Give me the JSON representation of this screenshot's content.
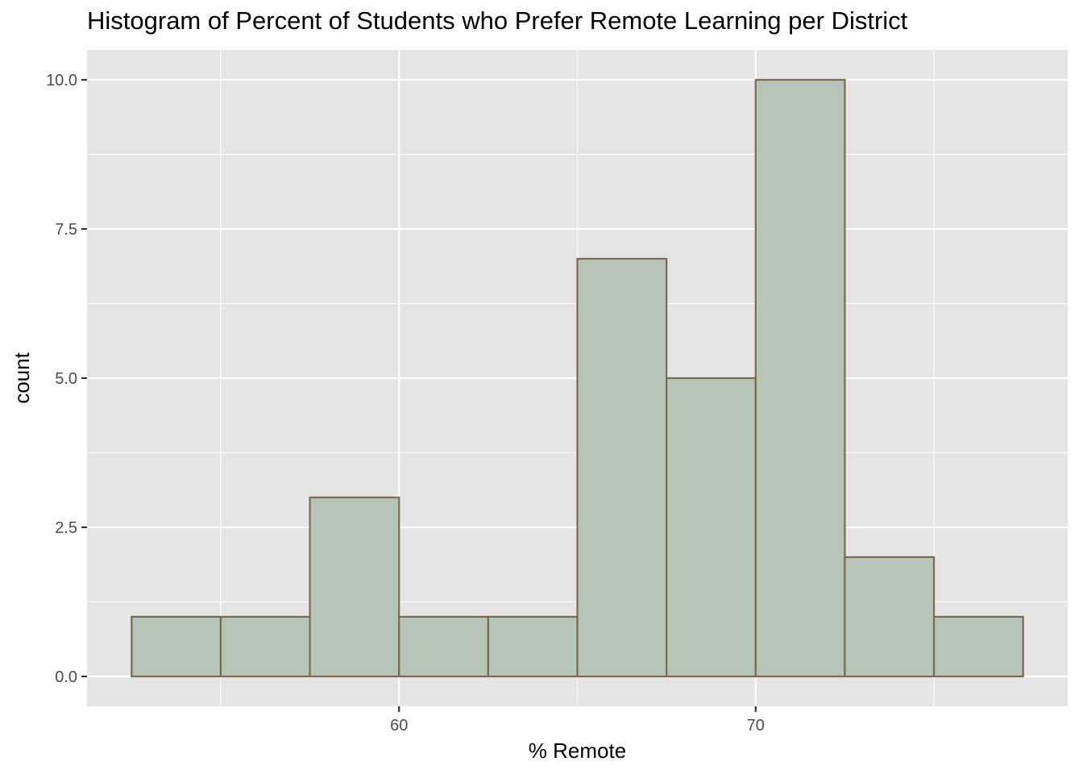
{
  "chart_data": {
    "type": "bar",
    "subtype": "histogram",
    "title": "Histogram of Percent of Students who Prefer Remote Learning per District",
    "xlabel": "% Remote",
    "ylabel": "count",
    "bins": [
      {
        "x0": 52.5,
        "x1": 55.0,
        "count": 1
      },
      {
        "x0": 55.0,
        "x1": 57.5,
        "count": 1
      },
      {
        "x0": 57.5,
        "x1": 60.0,
        "count": 3
      },
      {
        "x0": 60.0,
        "x1": 62.5,
        "count": 1
      },
      {
        "x0": 62.5,
        "x1": 65.0,
        "count": 1
      },
      {
        "x0": 65.0,
        "x1": 67.5,
        "count": 7
      },
      {
        "x0": 67.5,
        "x1": 70.0,
        "count": 5
      },
      {
        "x0": 70.0,
        "x1": 72.5,
        "count": 10
      },
      {
        "x0": 72.5,
        "x1": 75.0,
        "count": 2
      },
      {
        "x0": 75.0,
        "x1": 77.5,
        "count": 1
      }
    ],
    "xlim": [
      51.25,
      78.75
    ],
    "ylim": [
      -0.5,
      10.5
    ],
    "x_ticks": [
      60,
      70
    ],
    "x_tick_labels": [
      "60",
      "70"
    ],
    "x_minor_ticks": [
      55,
      65,
      75
    ],
    "y_ticks": [
      0,
      2.5,
      5,
      7.5,
      10
    ],
    "y_tick_labels": [
      "0.0",
      "2.5",
      "5.0",
      "7.5",
      "10.0"
    ],
    "y_minor_ticks": [
      1.25,
      3.75,
      6.25,
      8.75
    ],
    "grid": true,
    "colors": {
      "panel_background": "#e5e5e5",
      "grid": "#ffffff",
      "bar_fill": "#b6c5b7",
      "bar_outline": "#7b6a4f",
      "tick_label": "#4d4d4d",
      "tick_mark": "#333333"
    }
  }
}
